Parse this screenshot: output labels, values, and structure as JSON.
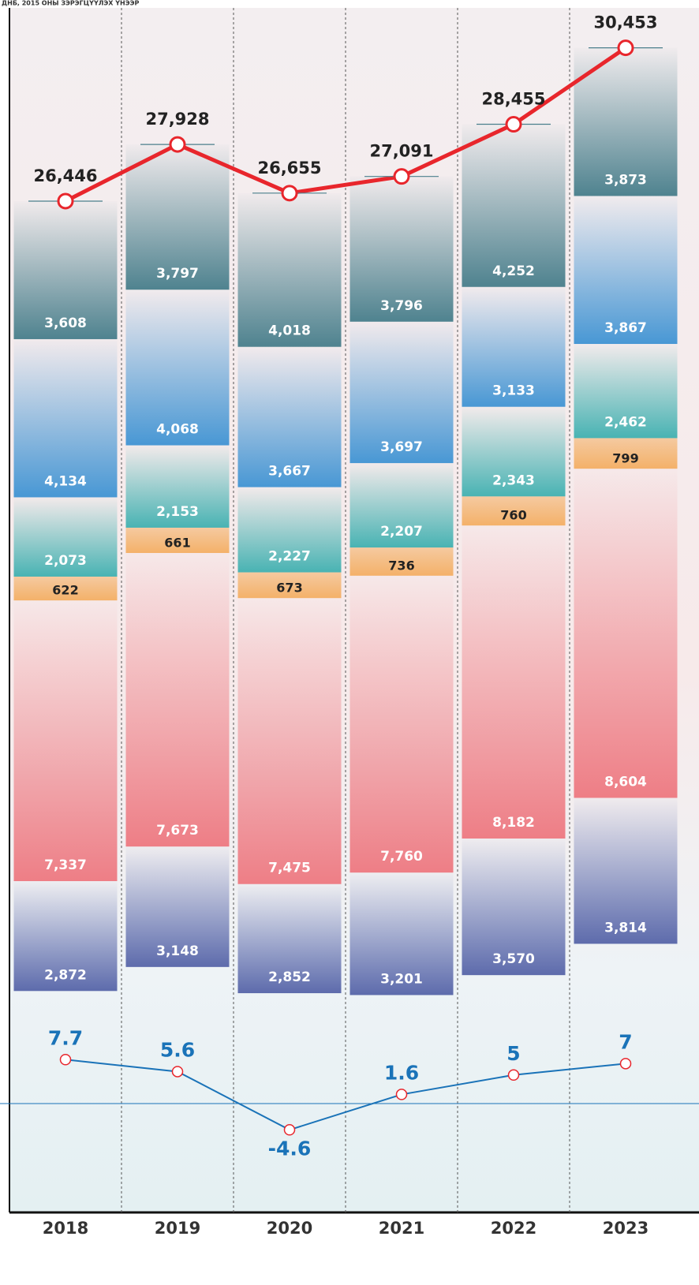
{
  "chart_data": {
    "type": "stacked-bar",
    "title": "ДНБ, 2015 ОНЫ ЗЭРЭГЦҮҮЛЭХ ҮНЭЭР",
    "categories": [
      "2018",
      "2019",
      "2020",
      "2021",
      "2022",
      "2023"
    ],
    "series": [
      {
        "color": "#5664a8",
        "values": [
          2872,
          3148,
          2852,
          3201,
          3570,
          3814
        ],
        "value_labels": [
          "2,872",
          "3,148",
          "2,852",
          "3,201",
          "3,570",
          "3,814"
        ]
      },
      {
        "color": "#ee7880",
        "values": [
          7337,
          7673,
          7475,
          7760,
          8182,
          8604
        ],
        "value_labels": [
          "7,337",
          "7,673",
          "7,475",
          "7,760",
          "8,182",
          "8,604"
        ]
      },
      {
        "color": "#f4ae62",
        "values": [
          622,
          661,
          673,
          736,
          760,
          799
        ],
        "value_labels": [
          "622",
          "661",
          "673",
          "736",
          "760",
          "799"
        ]
      },
      {
        "color": "#3fb0b0",
        "values": [
          2073,
          2153,
          2227,
          2207,
          2343,
          2462
        ],
        "value_labels": [
          "2,073",
          "2,153",
          "2,227",
          "2,207",
          "2,343",
          "2,462"
        ]
      },
      {
        "color": "#3f93d3",
        "values": [
          4134,
          4068,
          3667,
          3697,
          3133,
          3867
        ],
        "value_labels": [
          "4,134",
          "4,068",
          "3,667",
          "3,697",
          "3,133",
          "3,867"
        ]
      },
      {
        "color": "#467d8a",
        "values": [
          3608,
          3797,
          4018,
          3796,
          4252,
          3873
        ],
        "value_labels": [
          "3,608",
          "3,797",
          "4,018",
          "3,796",
          "4,252",
          "3,873"
        ]
      }
    ],
    "total": {
      "color": "#e8262c",
      "values": [
        26446,
        27928,
        26655,
        27091,
        28455,
        30453
      ],
      "value_labels": [
        "26,446",
        "27,928",
        "26,655",
        "27,091",
        "28,455",
        "30,453"
      ]
    },
    "growth": {
      "color": "#1a73b8",
      "values": [
        7.7,
        5.6,
        -4.6,
        1.6,
        5,
        7
      ]
    }
  }
}
